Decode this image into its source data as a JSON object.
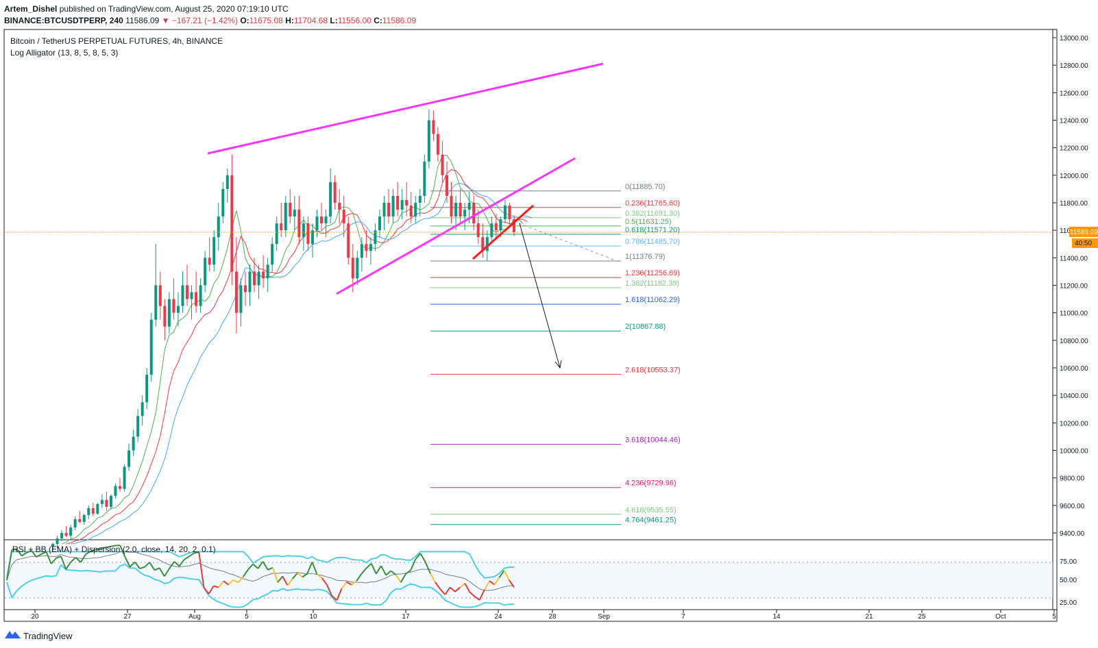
{
  "header": {
    "author": "Artem_Dishel",
    "published": "published on TradingView.com, August 25, 2020 07:19:10 UTC",
    "symbol_line": "BINANCE:BTCUSDTPERP, 240",
    "price": "11586.09",
    "change": "−167.21 (−1.42%)",
    "o_label": "O:",
    "o": "11675.08",
    "h_label": "H:",
    "h": "11704.68",
    "l_label": "L:",
    "l": "11556.00",
    "c_label": "C:",
    "c": "11586.09"
  },
  "legend": {
    "title": "Bitcoin / TetherUS PERPETUAL FUTURES, 4h, BINANCE",
    "indicator": "Log Alligator (13, 8, 5, 8, 5, 3)",
    "rsi_title": "RSI + BB (EMA) + Dispersion (2.0, close, 14, 20, 2, 0.1)"
  },
  "badges": {
    "price": "11586.09",
    "countdown": "40:50"
  },
  "brand": "TradingView",
  "chart_data": {
    "type": "candlestick",
    "title": "Bitcoin / TetherUS PERPETUAL FUTURES, 4h, BINANCE",
    "y_ticks": [
      "13000.00",
      "12800.00",
      "12600.00",
      "12400.00",
      "12200.00",
      "12000.00",
      "11800.00",
      "11600.00",
      "11400.00",
      "11200.00",
      "11000.00",
      "10800.00",
      "10600.00",
      "10400.00",
      "10200.00",
      "10000.00",
      "9800.00",
      "9600.00",
      "9400.00"
    ],
    "x_ticks": [
      "20",
      "27",
      "Aug",
      "5",
      "10",
      "17",
      "24",
      "28",
      "Sep",
      "7",
      "14",
      "21",
      "25",
      "Oct",
      "5"
    ],
    "rsi_ticks": [
      "75.00",
      "50.00",
      "25.00"
    ],
    "current_price": 11586.09,
    "fib_levels": [
      {
        "label": "0(11885.70)",
        "value": 11885.7,
        "color": "#787b86"
      },
      {
        "label": "0.236(11765.60)",
        "value": 11765.6,
        "color": "#f23645"
      },
      {
        "label": "0.382(11691.30)",
        "value": 11691.3,
        "color": "#81c784"
      },
      {
        "label": "0.5(11631.25)",
        "value": 11631.25,
        "color": "#4caf50"
      },
      {
        "label": "0.618(11571.20)",
        "value": 11571.2,
        "color": "#089981"
      },
      {
        "label": "0.786(11485.70)",
        "value": 11485.7,
        "color": "#64b5f6"
      },
      {
        "label": "1(11376.79)",
        "value": 11376.79,
        "color": "#787b86"
      },
      {
        "label": "1.236(11256.69)",
        "value": 11256.69,
        "color": "#f23645"
      },
      {
        "label": "1.382(11182.39)",
        "value": 11182.39,
        "color": "#81c784"
      },
      {
        "label": "1.618(11062.29)",
        "value": 11062.29,
        "color": "#2962ff"
      },
      {
        "label": "2(10867.88)",
        "value": 10867.88,
        "color": "#089981"
      },
      {
        "label": "2.618(10553.37)",
        "value": 10553.37,
        "color": "#f23645"
      },
      {
        "label": "3.618(10044.46)",
        "value": 10044.46,
        "color": "#9c27b0"
      },
      {
        "label": "4.236(9729.96)",
        "value": 9729.96,
        "color": "#e91e63"
      },
      {
        "label": "4.618(9535.55)",
        "value": 9535.55,
        "color": "#81c784"
      },
      {
        "label": "4.764(9461.25)",
        "value": 9461.25,
        "color": "#089981"
      }
    ],
    "candles": [
      [
        9300,
        9330,
        9260,
        9320
      ],
      [
        9320,
        9380,
        9290,
        9360
      ],
      [
        9360,
        9420,
        9340,
        9400
      ],
      [
        9400,
        9450,
        9370,
        9380
      ],
      [
        9380,
        9460,
        9360,
        9440
      ],
      [
        9440,
        9520,
        9420,
        9500
      ],
      [
        9500,
        9560,
        9470,
        9480
      ],
      [
        9480,
        9540,
        9460,
        9530
      ],
      [
        9530,
        9600,
        9500,
        9580
      ],
      [
        9580,
        9620,
        9520,
        9540
      ],
      [
        9540,
        9620,
        9530,
        9610
      ],
      [
        9610,
        9680,
        9580,
        9640
      ],
      [
        9640,
        9700,
        9560,
        9590
      ],
      [
        9590,
        9680,
        9570,
        9670
      ],
      [
        9670,
        9760,
        9650,
        9740
      ],
      [
        9740,
        9800,
        9700,
        9720
      ],
      [
        9720,
        9900,
        9700,
        9880
      ],
      [
        9880,
        10050,
        9850,
        10000
      ],
      [
        10000,
        10150,
        9960,
        10100
      ],
      [
        10100,
        10300,
        10060,
        10250
      ],
      [
        10250,
        10400,
        10180,
        10350
      ],
      [
        10350,
        10600,
        10300,
        10550
      ],
      [
        10550,
        11000,
        10500,
        10950
      ],
      [
        10950,
        11500,
        10900,
        11200
      ],
      [
        11200,
        11300,
        10950,
        11050
      ],
      [
        11050,
        11100,
        10800,
        10900
      ],
      [
        10900,
        11150,
        10850,
        11100
      ],
      [
        11100,
        11250,
        10950,
        11000
      ],
      [
        11000,
        11150,
        10900,
        11050
      ],
      [
        11050,
        11300,
        11000,
        11200
      ],
      [
        11200,
        11350,
        11050,
        11100
      ],
      [
        11100,
        11200,
        10950,
        11150
      ],
      [
        11150,
        11300,
        11000,
        11050
      ],
      [
        11050,
        11250,
        11000,
        11200
      ],
      [
        11200,
        11450,
        11150,
        11400
      ],
      [
        11400,
        11550,
        11300,
        11350
      ],
      [
        11350,
        11600,
        11300,
        11550
      ],
      [
        11550,
        11800,
        11450,
        11700
      ],
      [
        11700,
        11950,
        11650,
        11900
      ],
      [
        11900,
        12050,
        11800,
        12000
      ],
      [
        12000,
        12150,
        11200,
        11300
      ],
      [
        11300,
        11550,
        10850,
        11000
      ],
      [
        11000,
        11250,
        10900,
        11200
      ],
      [
        11200,
        11300,
        11050,
        11150
      ],
      [
        11150,
        11350,
        11050,
        11300
      ],
      [
        11300,
        11400,
        11150,
        11200
      ],
      [
        11200,
        11350,
        11100,
        11300
      ],
      [
        11300,
        11420,
        11180,
        11250
      ],
      [
        11250,
        11400,
        11150,
        11350
      ],
      [
        11350,
        11550,
        11300,
        11500
      ],
      [
        11500,
        11700,
        11450,
        11650
      ],
      [
        11650,
        11800,
        11550,
        11600
      ],
      [
        11600,
        11850,
        11550,
        11800
      ],
      [
        11800,
        11900,
        11650,
        11700
      ],
      [
        11700,
        11850,
        11600,
        11750
      ],
      [
        11750,
        11850,
        11500,
        11550
      ],
      [
        11550,
        11700,
        11450,
        11650
      ],
      [
        11650,
        11700,
        11450,
        11500
      ],
      [
        11500,
        11650,
        11400,
        11600
      ],
      [
        11600,
        11750,
        11550,
        11700
      ],
      [
        11700,
        11800,
        11600,
        11650
      ],
      [
        11650,
        11750,
        11550,
        11700
      ],
      [
        11700,
        12050,
        11650,
        11950
      ],
      [
        11950,
        12000,
        11750,
        11800
      ],
      [
        11800,
        11900,
        11650,
        11750
      ],
      [
        11750,
        11850,
        11550,
        11650
      ],
      [
        11650,
        11700,
        11350,
        11400
      ],
      [
        11400,
        11500,
        11150,
        11250
      ],
      [
        11250,
        11450,
        11200,
        11400
      ],
      [
        11400,
        11550,
        11300,
        11500
      ],
      [
        11500,
        11600,
        11400,
        11450
      ],
      [
        11450,
        11550,
        11350,
        11500
      ],
      [
        11500,
        11650,
        11450,
        11600
      ],
      [
        11600,
        11750,
        11550,
        11700
      ],
      [
        11700,
        11850,
        11600,
        11800
      ],
      [
        11800,
        11900,
        11650,
        11700
      ],
      [
        11700,
        11900,
        11650,
        11850
      ],
      [
        11850,
        11950,
        11700,
        11750
      ],
      [
        11750,
        11900,
        11680,
        11820
      ],
      [
        11820,
        11950,
        11700,
        11780
      ],
      [
        11780,
        11880,
        11650,
        11700
      ],
      [
        11700,
        11850,
        11650,
        11800
      ],
      [
        11800,
        11900,
        11700,
        11850
      ],
      [
        11850,
        12150,
        11800,
        12100
      ],
      [
        12100,
        12480,
        12050,
        12400
      ],
      [
        12400,
        12470,
        12250,
        12300
      ],
      [
        12300,
        12350,
        12100,
        12150
      ],
      [
        12150,
        12250,
        11950,
        12000
      ],
      [
        12000,
        12100,
        11800,
        11850
      ],
      [
        11850,
        11950,
        11650,
        11700
      ],
      [
        11700,
        11850,
        11600,
        11800
      ],
      [
        11800,
        11900,
        11650,
        11700
      ],
      [
        11700,
        11800,
        11600,
        11750
      ],
      [
        11750,
        11880,
        11650,
        11800
      ],
      [
        11800,
        11850,
        11600,
        11650
      ],
      [
        11650,
        11750,
        11500,
        11550
      ],
      [
        11550,
        11650,
        11400,
        11450
      ],
      [
        11450,
        11600,
        11380,
        11550
      ],
      [
        11550,
        11700,
        11500,
        11650
      ],
      [
        11650,
        11720,
        11550,
        11600
      ],
      [
        11600,
        11700,
        11550,
        11680
      ],
      [
        11680,
        11820,
        11650,
        11780
      ],
      [
        11780,
        11800,
        11640,
        11680
      ],
      [
        11680,
        11710,
        11556,
        11586
      ]
    ]
  }
}
